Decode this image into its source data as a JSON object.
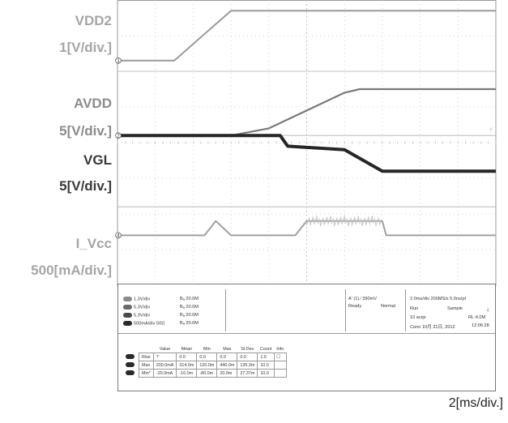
{
  "labels": {
    "vdd2_name": "VDD2",
    "vdd2_scale": "1[V/div.]",
    "avdd_name": "AVDD",
    "avdd_scale": "5[V/div.]",
    "vgl_name": "VGL",
    "vgl_scale": "5[V/div.]",
    "ivcc_name": "I_Vcc",
    "ivcc_scale": "500[mA/div.]",
    "time_scale": "2[ms/div.]"
  },
  "markers": {
    "ch1": "1",
    "ch2": "2",
    "ch3": "3",
    "ch4": "4"
  },
  "channels": [
    {
      "chip": "1",
      "scale": "1.3V/div",
      "bw": "Bₐ 20.0M"
    },
    {
      "chip": "2",
      "scale": "5.3V/div",
      "bw": "Bₐ 20.0M"
    },
    {
      "chip": "3",
      "scale": "5.3V/div",
      "bw": "Bₐ 20.0M"
    },
    {
      "chip": "4",
      "scale": "500mA/div  50Ω",
      "bw": "Bₐ 20.0M"
    }
  ],
  "trigger": {
    "source": "A' (1) ∕ 390mV",
    "state": "Ready",
    "mode": "Normal"
  },
  "acquisition": {
    "rate": "2.0ms/div  200MS/s     5.0ns/pt",
    "run": "Run",
    "sample": "Sample",
    "acqs": "10 acqs",
    "rl": "RL:4.0M",
    "date": "Conn  10月 31日, 2012",
    "time": "12:06:28"
  },
  "measurements": {
    "headers": [
      "",
      "Value",
      "Mean",
      "Min",
      "Max",
      "St Dev",
      "Count",
      "Info"
    ],
    "rows": [
      {
        "ch": "4",
        "name": "Rise",
        "cells": [
          "?",
          "0.0",
          "0.0",
          "0.0",
          "0.0",
          "1.0",
          ""
        ]
      },
      {
        "ch": "4",
        "name": "Max",
        "cells": [
          "200.0mA",
          "314.0m",
          "120.0m",
          "440.0m",
          "135.3m",
          "10.0",
          ""
        ]
      },
      {
        "ch": "4",
        "name": "Min*",
        "cells": [
          "-20.0mA",
          "-16.0m",
          "-80.0m",
          "20.0m",
          "27.37m",
          "10.0",
          ""
        ]
      }
    ]
  },
  "colors": {
    "grid_border": "#9a9a9a",
    "vdd2": "#9a9a9a",
    "avdd": "#7a7a7a",
    "vgl": "#262626",
    "ivcc": "#a0a0a0"
  },
  "chart_data": {
    "type": "line",
    "xlabel": "",
    "x_divisions": 10,
    "y_divisions": 8,
    "grid": true,
    "time_per_div": "2[ms/div.]",
    "series": [
      {
        "name": "VDD2",
        "unit_per_div": "1[V/div.]",
        "x": [
          0,
          1.5,
          3.0,
          3.3,
          10
        ],
        "y": [
          6.3,
          6.3,
          7.7,
          7.7,
          7.7
        ]
      },
      {
        "name": "AVDD",
        "unit_per_div": "5[V/div.]",
        "x": [
          0,
          3.0,
          4.0,
          6.0,
          6.4,
          10
        ],
        "y": [
          4.2,
          4.2,
          4.4,
          5.4,
          5.5,
          5.5
        ]
      },
      {
        "name": "VGL",
        "unit_per_div": "5[V/div.]",
        "x": [
          0,
          3.0,
          4.3,
          4.5,
          6.0,
          7.0,
          10
        ],
        "y": [
          4.2,
          4.2,
          4.2,
          3.9,
          3.8,
          3.2,
          3.2
        ]
      },
      {
        "name": "I_Vcc",
        "unit_per_div": "500[mA/div.]",
        "x": [
          0,
          2.3,
          2.6,
          3.0,
          4.7,
          5.0,
          7.0,
          7.1,
          10
        ],
        "y": [
          1.4,
          1.4,
          1.8,
          1.4,
          1.4,
          1.8,
          1.8,
          1.4,
          1.4
        ]
      }
    ]
  }
}
